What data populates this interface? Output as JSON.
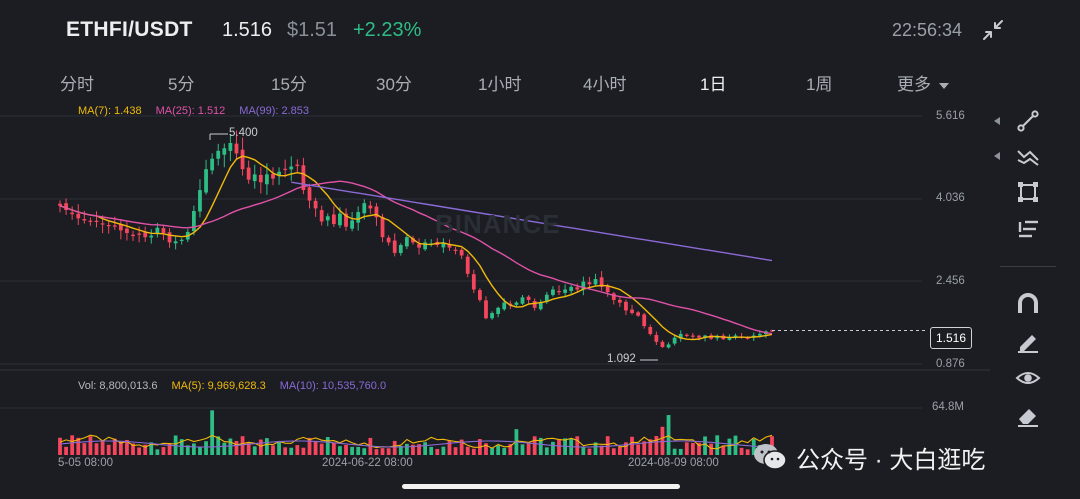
{
  "header": {
    "pair": "ETHFI/USDT",
    "last_price": "1.516",
    "usd_price": "$1.51",
    "change": "+2.23%",
    "time": "22:56:34"
  },
  "tabs": [
    {
      "label": "分时",
      "active": false
    },
    {
      "label": "5分",
      "active": false
    },
    {
      "label": "15分",
      "active": false
    },
    {
      "label": "30分",
      "active": false
    },
    {
      "label": "1小时",
      "active": false
    },
    {
      "label": "4小时",
      "active": false
    },
    {
      "label": "1日",
      "active": true
    },
    {
      "label": "1周",
      "active": false
    },
    {
      "label": "更多",
      "active": false
    }
  ],
  "legend": {
    "ma7": "MA(7): 1.438",
    "ma25": "MA(25): 1.512",
    "ma99": "MA(99): 2.853",
    "vol": "Vol: 8,800,013.6",
    "vol_ma5": "MA(5): 9,969,628.3",
    "vol_ma10": "MA(10): 10,535,760.0"
  },
  "watermark": "BINANCE",
  "colors": {
    "up": "#2ebd85",
    "down": "#f6465d",
    "ma7": "#f0b90b",
    "ma25": "#e052a8",
    "ma99": "#8a6ad6",
    "background": "#1b1d22"
  },
  "icons": {
    "collapse": "collapse-icon",
    "tools": [
      "trend-line-icon",
      "multi-line-icon",
      "rectangle-icon",
      "fib-icon",
      "magnet-icon",
      "pencil-icon",
      "eye-icon",
      "eraser-icon"
    ]
  },
  "footer": {
    "wechat_text": "公众号 · 大白逛吃"
  },
  "chart_data": {
    "type": "candlestick",
    "pair": "ETHFI/USDT",
    "interval": "1日",
    "price_axis": {
      "ticks": [
        "5.616",
        "4.036",
        "2.456",
        "0.876"
      ],
      "range": [
        0.876,
        5.616
      ]
    },
    "volume_axis": {
      "ticks": [
        "64.8M"
      ]
    },
    "date_labels": [
      "5-05 08:00",
      "2024-06-22 08:00",
      "2024-08-09 08:00"
    ],
    "current_price": "1.516",
    "high_label": "5.400",
    "low_label": "1.092",
    "volume_summary": {
      "vol": 8800013.6,
      "ma5": 9969628.3,
      "ma10": 10535760.0
    },
    "moving_averages": {
      "ma7": 1.438,
      "ma25": 1.512,
      "ma99": 2.853
    },
    "close_approx": [
      3.9,
      3.82,
      3.74,
      3.66,
      3.62,
      3.6,
      3.6,
      3.55,
      3.52,
      3.5,
      3.43,
      3.38,
      3.32,
      3.36,
      3.3,
      3.33,
      3.48,
      3.38,
      3.2,
      3.22,
      3.25,
      3.4,
      3.8,
      4.2,
      4.6,
      4.8,
      4.95,
      5.0,
      5.1,
      4.9,
      4.6,
      4.4,
      4.5,
      4.35,
      4.5,
      4.42,
      4.55,
      4.6,
      4.65,
      4.66,
      4.2,
      4.0,
      3.85,
      3.6,
      3.7,
      3.55,
      3.75,
      3.5,
      3.62,
      3.78,
      3.95,
      3.85,
      3.68,
      3.3,
      3.2,
      3.0,
      3.15,
      3.3,
      3.2,
      3.1,
      3.2,
      3.18,
      3.15,
      3.2,
      3.1,
      3.05,
      2.95,
      2.6,
      2.3,
      2.1,
      1.75,
      1.85,
      1.95,
      2.05,
      2.0,
      2.05,
      2.15,
      2.1,
      1.95,
      2.05,
      2.2,
      2.3,
      2.25,
      2.3,
      2.35,
      2.3,
      2.45,
      2.4,
      2.5,
      2.35,
      2.25,
      2.1,
      2.05,
      1.9,
      1.85,
      1.8,
      1.6,
      1.45,
      1.3,
      1.2,
      1.25,
      1.38,
      1.45,
      1.42,
      1.4,
      1.38,
      1.42,
      1.36,
      1.4,
      1.35,
      1.38,
      1.42,
      1.4,
      1.38,
      1.42,
      1.45,
      1.5,
      1.516
    ]
  }
}
